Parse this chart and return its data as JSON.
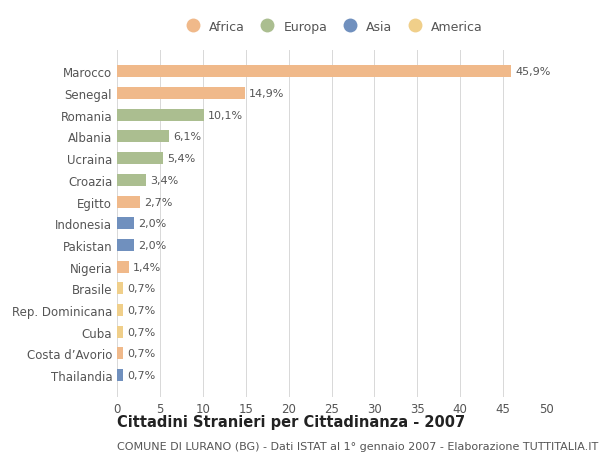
{
  "countries": [
    "Marocco",
    "Senegal",
    "Romania",
    "Albania",
    "Ucraina",
    "Croazia",
    "Egitto",
    "Indonesia",
    "Pakistan",
    "Nigeria",
    "Brasile",
    "Rep. Dominicana",
    "Cuba",
    "Costa d’Avorio",
    "Thailandia"
  ],
  "values": [
    45.9,
    14.9,
    10.1,
    6.1,
    5.4,
    3.4,
    2.7,
    2.0,
    2.0,
    1.4,
    0.7,
    0.7,
    0.7,
    0.7,
    0.7
  ],
  "labels": [
    "45,9%",
    "14,9%",
    "10,1%",
    "6,1%",
    "5,4%",
    "3,4%",
    "2,7%",
    "2,0%",
    "2,0%",
    "1,4%",
    "0,7%",
    "0,7%",
    "0,7%",
    "0,7%",
    "0,7%"
  ],
  "continents": [
    "Africa",
    "Africa",
    "Europa",
    "Europa",
    "Europa",
    "Europa",
    "Africa",
    "Asia",
    "Asia",
    "Africa",
    "America",
    "America",
    "America",
    "Africa",
    "Asia"
  ],
  "colors": {
    "Africa": "#F0B98A",
    "Europa": "#ABBE90",
    "Asia": "#7090BE",
    "America": "#F0CF8A"
  },
  "xlim": [
    0,
    50
  ],
  "xticks": [
    0,
    5,
    10,
    15,
    20,
    25,
    30,
    35,
    40,
    45,
    50
  ],
  "title": "Cittadini Stranieri per Cittadinanza - 2007",
  "subtitle": "COMUNE DI LURANO (BG) - Dati ISTAT al 1° gennaio 2007 - Elaborazione TUTTITALIA.IT",
  "bg_color": "#FFFFFF",
  "grid_color": "#D8D8D8",
  "bar_height": 0.55,
  "label_fontsize": 8.0,
  "ytick_fontsize": 8.5,
  "xtick_fontsize": 8.5,
  "title_fontsize": 10.5,
  "subtitle_fontsize": 8.0,
  "legend_order": [
    "Africa",
    "Europa",
    "Asia",
    "America"
  ]
}
